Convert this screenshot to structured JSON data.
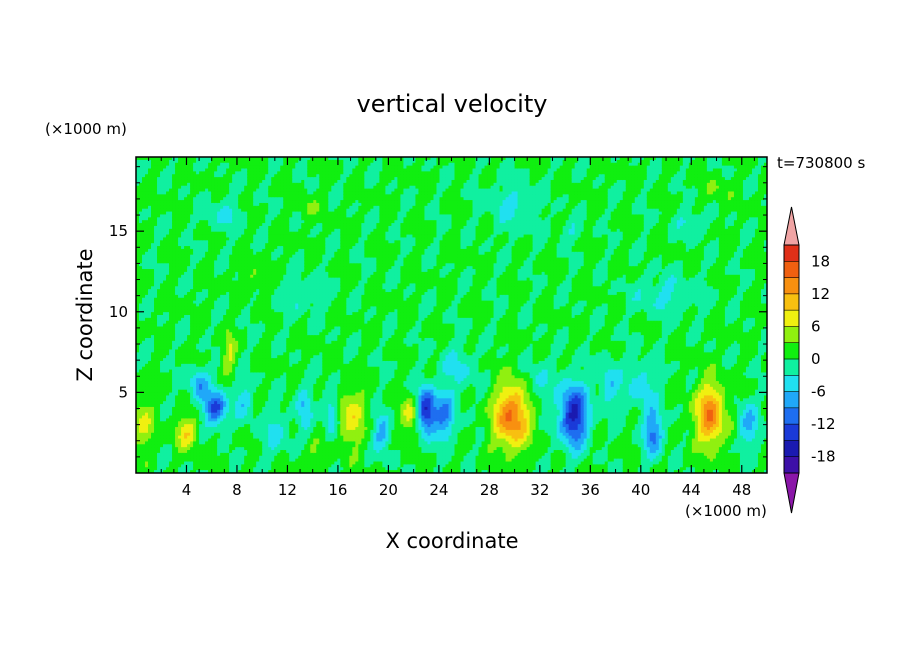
{
  "chart_data": {
    "type": "heatmap",
    "title": "vertical velocity",
    "xlabel": "X coordinate",
    "ylabel": "Z coordinate",
    "x_unit": "(×1000 m)",
    "y_unit": "(×1000 m)",
    "time_label": "t=730800 s",
    "xlim": [
      0,
      50
    ],
    "ylim": [
      0,
      19.6
    ],
    "x_ticks": [
      4,
      8,
      12,
      16,
      20,
      24,
      28,
      32,
      36,
      40,
      44,
      48
    ],
    "y_ticks": [
      5,
      10,
      15
    ],
    "colorbar": {
      "levels": [
        -21,
        -18,
        -15,
        -12,
        -9,
        -6,
        -3,
        0,
        3,
        6,
        9,
        12,
        15,
        18,
        21
      ],
      "tick_labels": [
        -18,
        -12,
        -6,
        0,
        6,
        12,
        18
      ],
      "under_color": "#8a16a8",
      "over_color": "#f0a4a4",
      "colors": [
        "#3d10a8",
        "#1a1ab0",
        "#1a3ad8",
        "#1e6ef0",
        "#20a8f8",
        "#20e0f0",
        "#10f0a0",
        "#10ef10",
        "#90f010",
        "#f0f010",
        "#f8c010",
        "#f89010",
        "#f06010",
        "#e03018"
      ]
    },
    "cells": [
      {
        "x": 4,
        "z": 2.5,
        "dx": 0.9,
        "dz": 1.0,
        "w": 8
      },
      {
        "x": 0.5,
        "z": 3.0,
        "dx": 0.9,
        "dz": 1.6,
        "w": 6
      },
      {
        "x": 6.3,
        "z": 4.0,
        "dx": 0.9,
        "dz": 1.1,
        "w": -13
      },
      {
        "x": 5.0,
        "z": 5.5,
        "dx": 0.8,
        "dz": 1.0,
        "w": -8
      },
      {
        "x": 7.4,
        "z": 7.5,
        "dx": 0.5,
        "dz": 1.2,
        "w": 6
      },
      {
        "x": 8.5,
        "z": 4.5,
        "dx": 0.7,
        "dz": 1.2,
        "w": -5
      },
      {
        "x": 11.0,
        "z": 2.5,
        "dx": 1.2,
        "dz": 1.5,
        "w": -4
      },
      {
        "x": 13.3,
        "z": 4.0,
        "dx": 0.6,
        "dz": 1.5,
        "w": -6
      },
      {
        "x": 15.5,
        "z": 3.8,
        "dx": 0.6,
        "dz": 1.5,
        "w": -7
      },
      {
        "x": 17.0,
        "z": 3.5,
        "dx": 1.2,
        "dz": 1.9,
        "w": 7
      },
      {
        "x": 19.5,
        "z": 2.5,
        "dx": 0.7,
        "dz": 1.2,
        "w": -8
      },
      {
        "x": 21.8,
        "z": 3.5,
        "dx": 0.8,
        "dz": 1.2,
        "w": 8
      },
      {
        "x": 23.0,
        "z": 3.8,
        "dx": 0.8,
        "dz": 1.4,
        "w": -17
      },
      {
        "x": 24.5,
        "z": 3.5,
        "dx": 0.8,
        "dz": 1.5,
        "w": -9
      },
      {
        "x": 29.8,
        "z": 3.5,
        "dx": 1.4,
        "dz": 2.0,
        "w": 15
      },
      {
        "x": 34.7,
        "z": 3.6,
        "dx": 1.1,
        "dz": 1.9,
        "w": -17
      },
      {
        "x": 37.5,
        "z": 5.5,
        "dx": 0.8,
        "dz": 1.5,
        "w": -6
      },
      {
        "x": 41.0,
        "z": 2.5,
        "dx": 0.8,
        "dz": 1.5,
        "w": -10
      },
      {
        "x": 40.0,
        "z": 5.5,
        "dx": 1.2,
        "dz": 1.6,
        "w": -5
      },
      {
        "x": 45.5,
        "z": 3.6,
        "dx": 1.2,
        "dz": 1.9,
        "w": 14
      },
      {
        "x": 48.5,
        "z": 3.0,
        "dx": 0.8,
        "dz": 1.5,
        "w": -7
      },
      {
        "x": 25.5,
        "z": 6.5,
        "dx": 1.5,
        "dz": 1.5,
        "w": -4
      },
      {
        "x": 32.0,
        "z": 5.5,
        "dx": 1.0,
        "dz": 1.5,
        "w": -4
      },
      {
        "x": 14.0,
        "z": 1.0,
        "dx": 1.0,
        "dz": 1.0,
        "w": 3
      },
      {
        "x": 7.0,
        "z": 16.0,
        "dx": 1.5,
        "dz": 0.9,
        "w": -4
      },
      {
        "x": 30.0,
        "z": 16.5,
        "dx": 2.0,
        "dz": 1.5,
        "w": -4
      },
      {
        "x": 13.5,
        "z": 16.5,
        "dx": 0.8,
        "dz": 0.7,
        "w": 3
      },
      {
        "x": 46.0,
        "z": 17.5,
        "dx": 1.0,
        "dz": 0.8,
        "w": 3
      },
      {
        "x": 34.5,
        "z": 15.0,
        "dx": 1.0,
        "dz": 0.7,
        "w": -3
      },
      {
        "x": 42.0,
        "z": 11.0,
        "dx": 2.5,
        "dz": 1.2,
        "w": -4
      },
      {
        "x": 13.0,
        "z": 11.0,
        "dx": 2.0,
        "dz": 1.2,
        "w": -3
      },
      {
        "x": 44.0,
        "z": 15.5,
        "dx": 1.2,
        "dz": 0.8,
        "w": -4
      },
      {
        "x": 9.5,
        "z": 12.0,
        "dx": 1.0,
        "dz": 1.0,
        "w": 3
      }
    ]
  }
}
